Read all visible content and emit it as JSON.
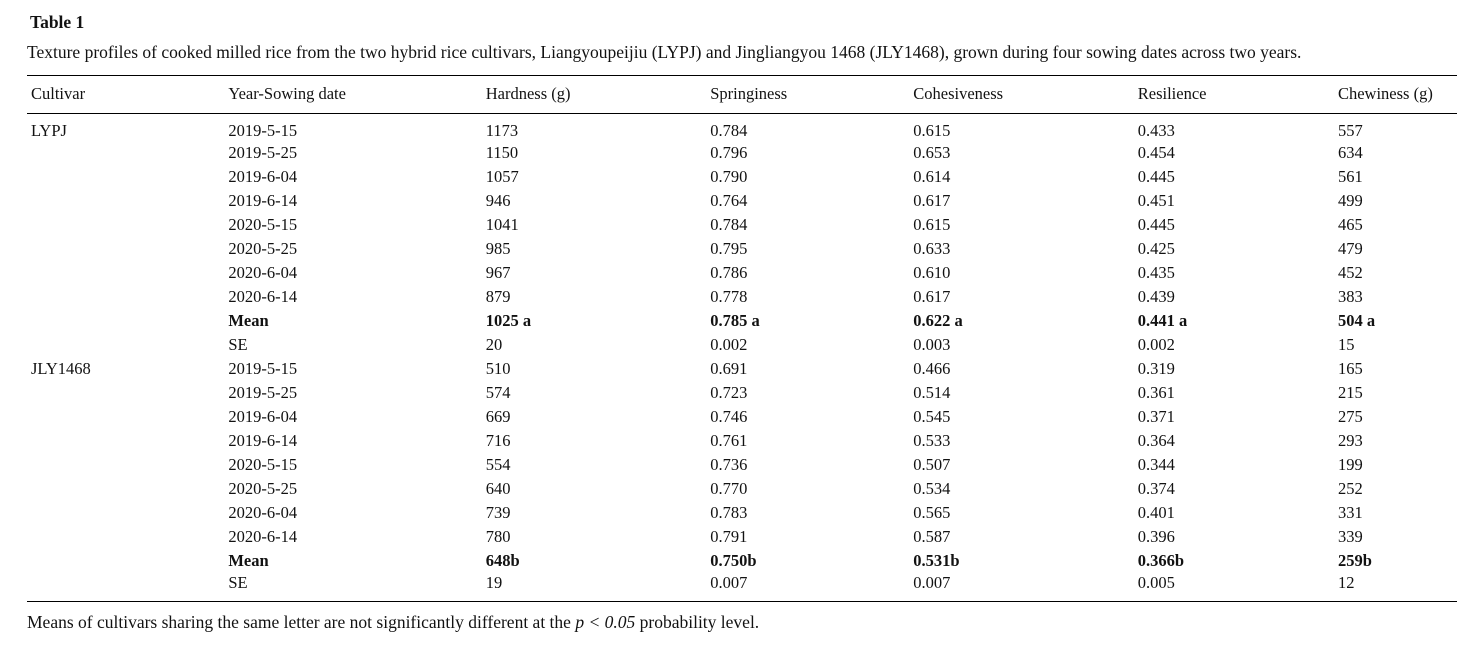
{
  "page": {
    "table_label": "Table 1",
    "caption": "Texture profiles of cooked milled rice from the two hybrid rice cultivars, Liangyoupeijiu (LYPJ) and Jingliangyou 1468 (JLY1468), grown during four sowing dates across two years.",
    "footnote": {
      "prefix": "Means of cultivars sharing the same letter are not significantly different at the ",
      "italic": "p < 0.05",
      "suffix": " probability level."
    }
  },
  "table": {
    "columns": [
      "Cultivar",
      "Year-Sowing date",
      "Hardness (g)",
      "Springiness",
      "Cohesiveness",
      "Resilience",
      "Chewiness (g)"
    ],
    "rows": [
      {
        "bold": false,
        "cells": [
          "LYPJ",
          "2019-5-15",
          "1173",
          "0.784",
          "0.615",
          "0.433",
          "557"
        ]
      },
      {
        "bold": false,
        "cells": [
          "",
          "2019-5-25",
          "1150",
          "0.796",
          "0.653",
          "0.454",
          "634"
        ]
      },
      {
        "bold": false,
        "cells": [
          "",
          "2019-6-04",
          "1057",
          "0.790",
          "0.614",
          "0.445",
          "561"
        ]
      },
      {
        "bold": false,
        "cells": [
          "",
          "2019-6-14",
          "946",
          "0.764",
          "0.617",
          "0.451",
          "499"
        ]
      },
      {
        "bold": false,
        "cells": [
          "",
          "2020-5-15",
          "1041",
          "0.784",
          "0.615",
          "0.445",
          "465"
        ]
      },
      {
        "bold": false,
        "cells": [
          "",
          "2020-5-25",
          "985",
          "0.795",
          "0.633",
          "0.425",
          "479"
        ]
      },
      {
        "bold": false,
        "cells": [
          "",
          "2020-6-04",
          "967",
          "0.786",
          "0.610",
          "0.435",
          "452"
        ]
      },
      {
        "bold": false,
        "cells": [
          "",
          "2020-6-14",
          "879",
          "0.778",
          "0.617",
          "0.439",
          "383"
        ]
      },
      {
        "bold": true,
        "cells": [
          "",
          "Mean",
          "1025 a",
          "0.785 a",
          "0.622 a",
          "0.441 a",
          "504 a"
        ]
      },
      {
        "bold": false,
        "cells": [
          "",
          "SE",
          "20",
          "0.002",
          "0.003",
          "0.002",
          "15"
        ]
      },
      {
        "bold": false,
        "cells": [
          "JLY1468",
          "2019-5-15",
          "510",
          "0.691",
          "0.466",
          "0.319",
          "165"
        ]
      },
      {
        "bold": false,
        "cells": [
          "",
          "2019-5-25",
          "574",
          "0.723",
          "0.514",
          "0.361",
          "215"
        ]
      },
      {
        "bold": false,
        "cells": [
          "",
          "2019-6-04",
          "669",
          "0.746",
          "0.545",
          "0.371",
          "275"
        ]
      },
      {
        "bold": false,
        "cells": [
          "",
          "2019-6-14",
          "716",
          "0.761",
          "0.533",
          "0.364",
          "293"
        ]
      },
      {
        "bold": false,
        "cells": [
          "",
          "2020-5-15",
          "554",
          "0.736",
          "0.507",
          "0.344",
          "199"
        ]
      },
      {
        "bold": false,
        "cells": [
          "",
          "2020-5-25",
          "640",
          "0.770",
          "0.534",
          "0.374",
          "252"
        ]
      },
      {
        "bold": false,
        "cells": [
          "",
          "2020-6-04",
          "739",
          "0.783",
          "0.565",
          "0.401",
          "331"
        ]
      },
      {
        "bold": false,
        "cells": [
          "",
          "2020-6-14",
          "780",
          "0.791",
          "0.587",
          "0.396",
          "339"
        ]
      },
      {
        "bold": true,
        "cells": [
          "",
          "Mean",
          "648b",
          "0.750b",
          "0.531b",
          "0.366b",
          "259b"
        ]
      },
      {
        "bold": false,
        "cells": [
          "",
          "SE",
          "19",
          "0.007",
          "0.007",
          "0.005",
          "12"
        ]
      }
    ]
  }
}
